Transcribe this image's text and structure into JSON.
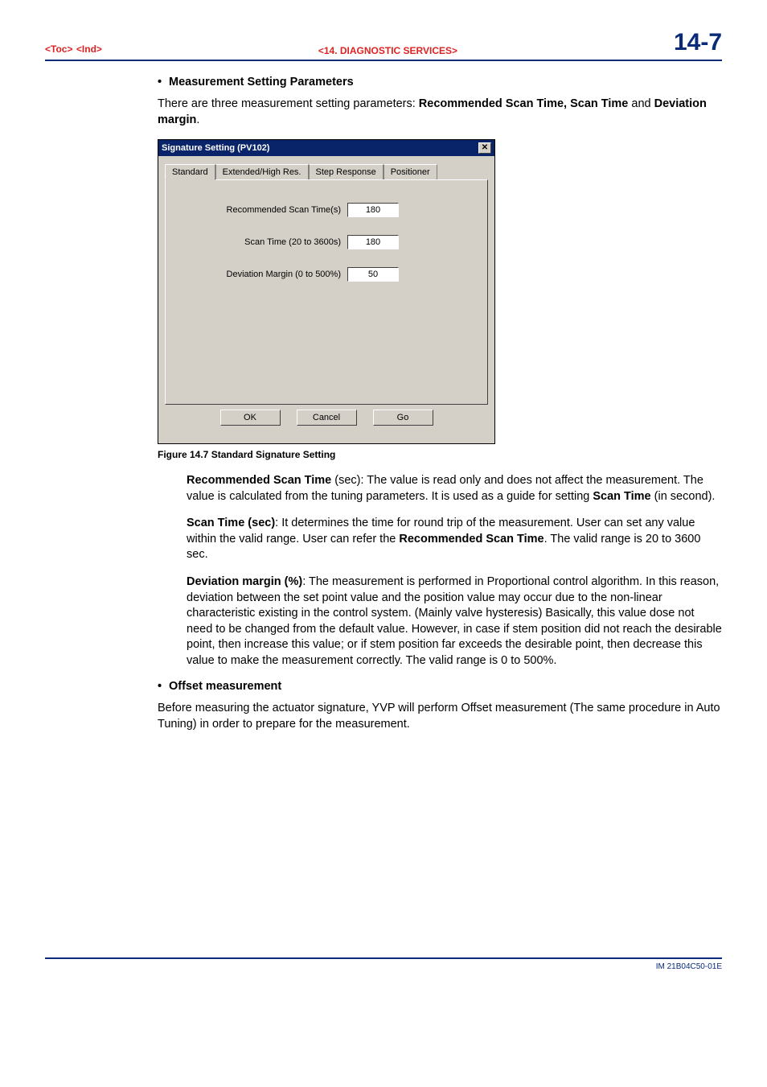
{
  "header": {
    "toc": "<Toc>",
    "ind": "<Ind>",
    "section": "<14.  DIAGNOSTIC SERVICES>",
    "page_num": "14-7"
  },
  "body": {
    "h_measurement": "Measurement Setting Parameters",
    "intro_pre": "There are three measurement setting parameters: ",
    "intro_b1": "Recommended Scan Time, Scan Time",
    "intro_mid": " and ",
    "intro_b2": "Deviation margin",
    "intro_post": "."
  },
  "dialog": {
    "title": "Signature Setting (PV102)",
    "tabs": {
      "t0": "Standard",
      "t1": "Extended/High Res.",
      "t2": "Step Response",
      "t3": "Positioner"
    },
    "fields": {
      "rec_label": "Recommended Scan Time(s)",
      "rec_value": "180",
      "scan_label": "Scan Time (20 to 3600s)",
      "scan_value": "180",
      "dev_label": "Deviation Margin (0 to 500%)",
      "dev_value": "50"
    },
    "buttons": {
      "ok": "OK",
      "cancel": "Cancel",
      "go": "Go"
    },
    "close_glyph": "✕"
  },
  "caption": "Figure 14.7  Standard Signature Setting",
  "definitions": {
    "rec_b": "Recommended Scan Time",
    "rec_rest": " (sec):  The value is read only and does not affect the measurement. The value is calculated from the tuning parameters. It is used as a guide for setting ",
    "rec_b2": "Scan Time",
    "rec_rest2": " (in second).",
    "scan_b": "Scan Time (sec)",
    "scan_rest": ": It determines the time for round trip of the measurement. User can set any value within the valid range. User can refer the ",
    "scan_b2": "Recommended Scan Time",
    "scan_rest2": ". The valid range is 20 to 3600 sec.",
    "dev_b": "Deviation margin (%)",
    "dev_rest": ": The measurement is performed in Proportional control algorithm. In this reason, deviation between the set point value and the position value may occur due to the non-linear characteristic existing in the control system. (Mainly valve hysteresis) Basically, this value dose not need to be changed from the default value. However, in case if stem position did not reach the desirable point, then increase this value; or if stem position far exceeds the desirable point, then decrease this value to make the measurement correctly. The valid range is 0 to 500%."
  },
  "offset": {
    "heading": "Offset measurement",
    "para": "Before measuring the actuator signature, YVP will perform Offset measurement (The same procedure in Auto Tuning) in order to prepare for the measurement."
  },
  "footer": {
    "doc_id": "IM 21B04C50-01E"
  },
  "style": {
    "accent_color": "#0a2a7a",
    "link_color": "#d22",
    "dialog_bg": "#d4d0c8",
    "titlebar_bg": "#0a246a"
  }
}
